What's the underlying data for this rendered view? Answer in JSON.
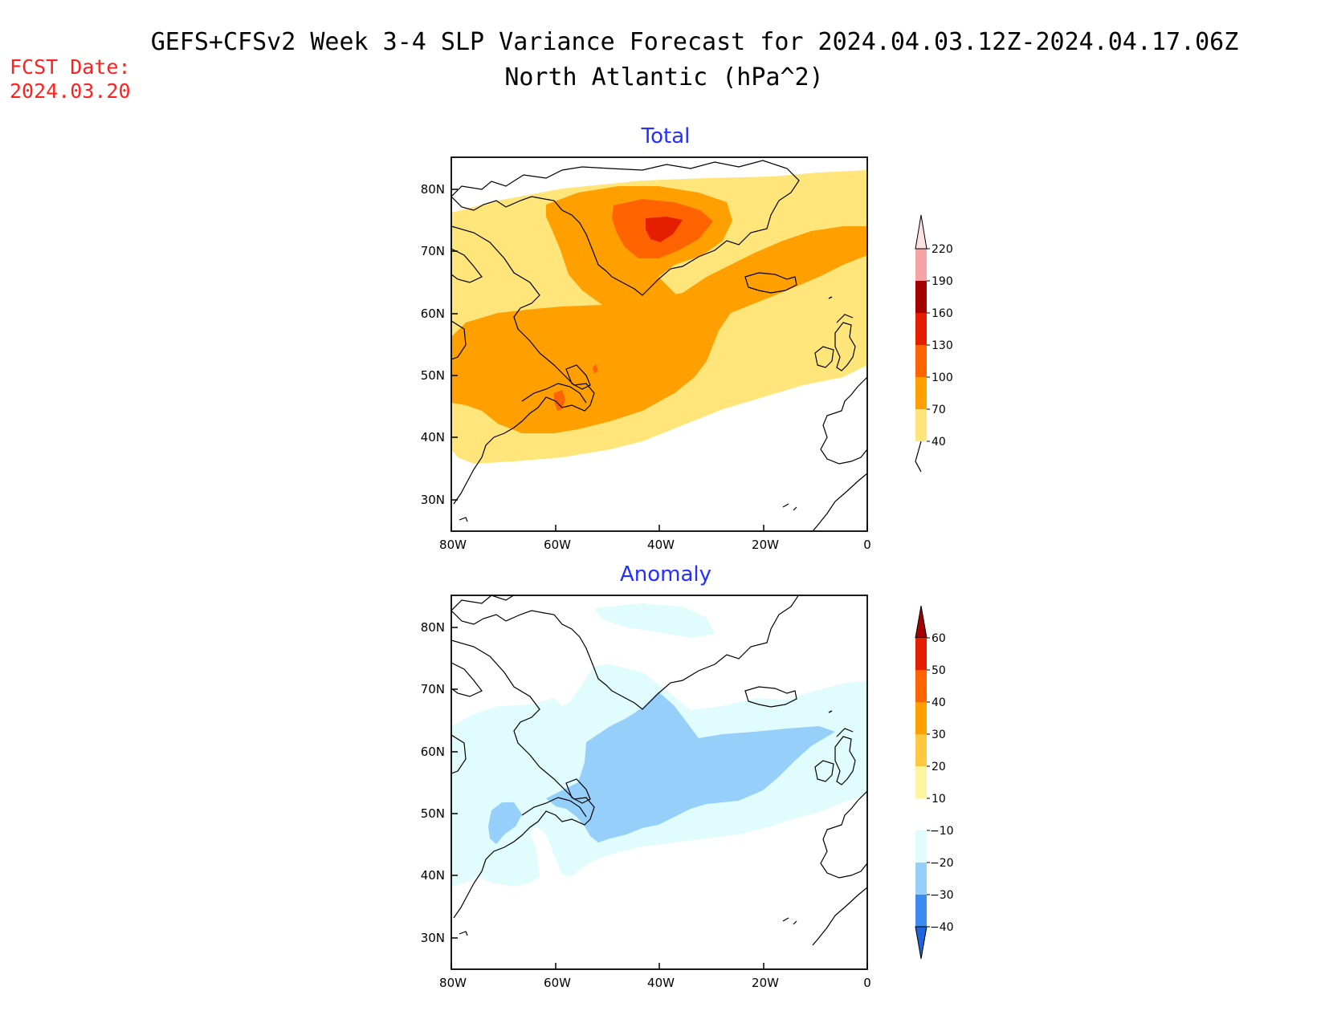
{
  "title": {
    "line1": "GEFS+CFSv2 Week 3-4 SLP Variance Forecast for 2024.04.03.12Z-2024.04.17.06Z",
    "line2": "North Atlantic (hPa^2)"
  },
  "fcst": {
    "label": "FCST Date:",
    "date": "2024.03.20"
  },
  "axes": {
    "lat_labels": [
      "80N",
      "70N",
      "60N",
      "50N",
      "40N",
      "30N"
    ],
    "lon_labels": [
      "80W",
      "60W",
      "40W",
      "20W",
      "0"
    ]
  },
  "panels": [
    {
      "title": "Total",
      "colorbar": {
        "levels": [
          "40",
          "70",
          "100",
          "130",
          "160",
          "190",
          "220"
        ],
        "colors": [
          "#ffe57a",
          "#ffa000",
          "#ff6400",
          "#e61e00",
          "#a50000",
          "#f4a4a4",
          "#fde0e0"
        ]
      }
    },
    {
      "title": "Anomaly",
      "colorbar": {
        "levels": [
          "60",
          "50",
          "40",
          "30",
          "20",
          "10",
          "−10",
          "−20",
          "−30",
          "−40"
        ],
        "colors": [
          "#a50000",
          "#e61e00",
          "#ff6400",
          "#ffa000",
          "#ffc840",
          "#fff5a0",
          "#ffffff",
          "#e0fcfc",
          "#96d0fa",
          "#3c8cf0",
          "#1e64dc"
        ]
      }
    }
  ]
}
